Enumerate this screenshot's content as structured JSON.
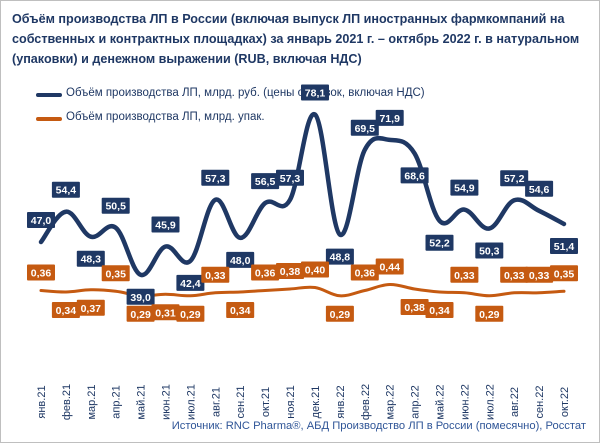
{
  "title": "Объём производства ЛП в России (включая выпуск ЛП иностранных фармкомпаний на собственных и контрактных площадках) за январь 2021 г. – октябрь 2022 г. в натуральном (упаковки) и денежном выражении (RUB, включая НДС)",
  "source": "Источник: RNC Pharma®, АБД Производство ЛП в России (помесячно), Росстат",
  "colors": {
    "rub_series": "#1f3864",
    "units_series": "#c55a11",
    "rub_label_bg": "#1f3864",
    "units_label_bg": "#c55a11",
    "label_text": "#ffffff",
    "axis_text": "#1f3864",
    "source_text": "#2f5597"
  },
  "chart_data": {
    "type": "line",
    "title": "Объём производства ЛП в России (включая выпуск ЛП иностранных фармкомпаний на собственных и контрактных площадках) за январь 2021 г. – октябрь 2022 г. в натуральном (упаковки) и денежном выражении (RUB, включая НДС)",
    "categories": [
      "янв.21",
      "фев.21",
      "мар.21",
      "апр.21",
      "май.21",
      "июн.21",
      "июл.21",
      "авг.21",
      "сен.21",
      "окт.21",
      "ноя.21",
      "дек.21",
      "янв.22",
      "фев.22",
      "мар.22",
      "апр.22",
      "май.22",
      "июн.22",
      "июл.22",
      "авг.22",
      "сен.22",
      "окт.22"
    ],
    "series": [
      {
        "name": "Объём производства ЛП, млрд. руб. (цены отгрузок, включая НДС)",
        "values": [
          47.0,
          54.4,
          48.3,
          50.5,
          39.0,
          45.9,
          42.4,
          57.3,
          48.0,
          56.5,
          57.3,
          78.1,
          48.8,
          69.5,
          71.9,
          68.6,
          52.2,
          54.9,
          50.3,
          57.2,
          54.6,
          51.4
        ],
        "labels": [
          "47,0",
          "54,4",
          "48,3",
          "50,5",
          "39,0",
          "45,9",
          "42,4",
          "57,3",
          "48,0",
          "56,5",
          "57,3",
          "78,1",
          "48,8",
          "69,5",
          "71,9",
          "68,6",
          "52,2",
          "54,9",
          "50,3",
          "57,2",
          "54,6",
          "51,4"
        ],
        "label_pos": [
          "above",
          "above",
          "below",
          "above",
          "below",
          "above",
          "below",
          "above",
          "below",
          "above",
          "above",
          "above",
          "below",
          "above",
          "above",
          "below",
          "below",
          "above",
          "below",
          "above",
          "above",
          "below"
        ]
      },
      {
        "name": "Объём производства ЛП, млрд. упак.",
        "values": [
          0.36,
          0.34,
          0.37,
          0.35,
          0.29,
          0.31,
          0.29,
          0.33,
          0.34,
          0.36,
          0.38,
          0.4,
          0.29,
          0.36,
          0.44,
          0.38,
          0.34,
          0.33,
          0.29,
          0.33,
          0.33,
          0.35
        ],
        "labels": [
          "0,36",
          "0,34",
          "0,37",
          "0,35",
          "0,29",
          "0,31",
          "0,29",
          "0,33",
          "0,34",
          "0,36",
          "0,38",
          "0,40",
          "0,29",
          "0,36",
          "0,44",
          "0,38",
          "0,34",
          "0,33",
          "0,29",
          "0,33",
          "0,33",
          "0,35"
        ],
        "label_pos": [
          "above",
          "below",
          "below",
          "above",
          "below",
          "below",
          "below",
          "above",
          "below",
          "above",
          "above",
          "above",
          "below",
          "above",
          "above",
          "below",
          "below",
          "above",
          "below",
          "above",
          "above",
          "above"
        ]
      }
    ],
    "legend_position": "top-left",
    "grid": false
  }
}
